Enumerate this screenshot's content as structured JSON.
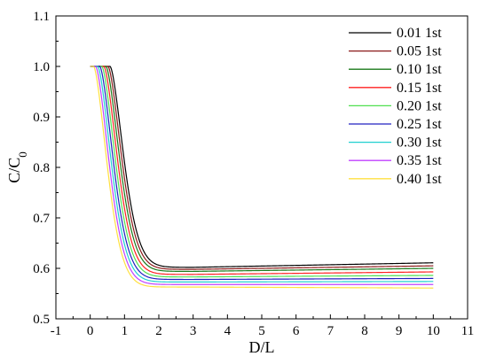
{
  "chart_data": {
    "type": "line",
    "xlabel": "D/L",
    "ylabel": "C/C",
    "ylabel_subscript": "0",
    "xlim": [
      -1,
      11
    ],
    "ylim": [
      0.5,
      1.1
    ],
    "xticks": [
      "-1",
      "0",
      "1",
      "2",
      "3",
      "4",
      "5",
      "6",
      "7",
      "8",
      "9",
      "10",
      "11"
    ],
    "yticks": [
      "0.5",
      "0.6",
      "0.7",
      "0.8",
      "0.9",
      "1.0",
      "1.1"
    ],
    "legend_position": "top-right",
    "grid": false,
    "series": [
      {
        "name": "0.01 1st",
        "color": "#000000",
        "drop_start": 0.58,
        "x0": 0.95,
        "k": 0.55,
        "y_floor": 0.602,
        "y_end": 0.611
      },
      {
        "name": "0.05 1st",
        "color": "#8b1a1a",
        "drop_start": 0.52,
        "x0": 0.93,
        "k": 0.55,
        "y_floor": 0.598,
        "y_end": 0.605
      },
      {
        "name": "0.10 1st",
        "color": "#1a7a1a",
        "drop_start": 0.46,
        "x0": 0.91,
        "k": 0.55,
        "y_floor": 0.594,
        "y_end": 0.6
      },
      {
        "name": "0.15 1st",
        "color": "#ff2020",
        "drop_start": 0.4,
        "x0": 0.89,
        "k": 0.55,
        "y_floor": 0.588,
        "y_end": 0.593
      },
      {
        "name": "0.20 1st",
        "color": "#50e050",
        "drop_start": 0.34,
        "x0": 0.87,
        "k": 0.55,
        "y_floor": 0.583,
        "y_end": 0.586
      },
      {
        "name": "0.25 1st",
        "color": "#2020c0",
        "drop_start": 0.28,
        "x0": 0.85,
        "k": 0.55,
        "y_floor": 0.578,
        "y_end": 0.58
      },
      {
        "name": "0.30 1st",
        "color": "#20d0d0",
        "drop_start": 0.22,
        "x0": 0.83,
        "k": 0.55,
        "y_floor": 0.573,
        "y_end": 0.574
      },
      {
        "name": "0.35 1st",
        "color": "#c040ff",
        "drop_start": 0.16,
        "x0": 0.81,
        "k": 0.55,
        "y_floor": 0.568,
        "y_end": 0.568
      },
      {
        "name": "0.40 1st",
        "color": "#ffe040",
        "drop_start": 0.1,
        "x0": 0.79,
        "k": 0.55,
        "y_floor": 0.563,
        "y_end": 0.561
      }
    ]
  }
}
